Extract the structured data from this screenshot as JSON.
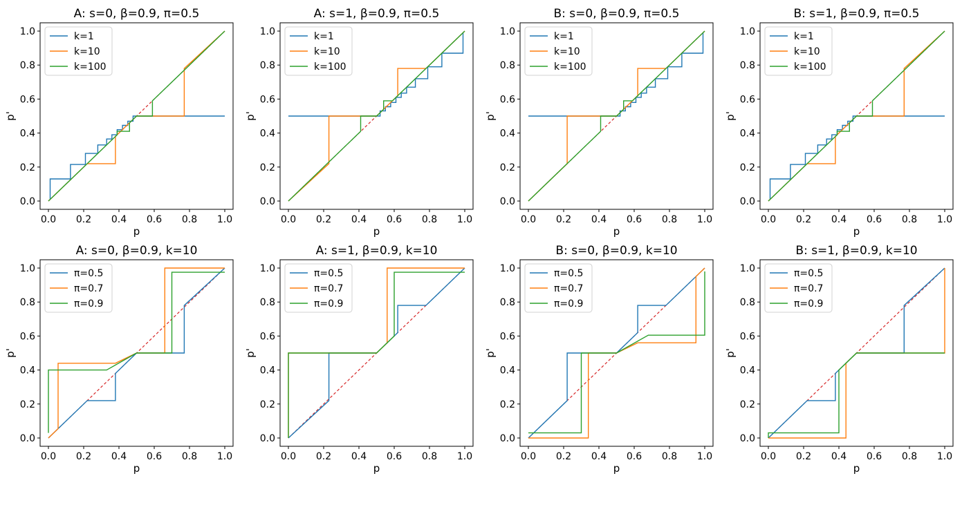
{
  "figure": {
    "rows": 2,
    "cols": 4
  },
  "colors": {
    "c0": "#1f77b4",
    "c1": "#ff7f0e",
    "c2": "#2ca02c",
    "diag": "#d62728",
    "axis": "#000000"
  },
  "chart_data": [
    {
      "type": "line",
      "title": "A: s=0, β=0.9, π=0.5",
      "xlabel": "p",
      "ylabel": "p'",
      "xlim": [
        0,
        1
      ],
      "ylim": [
        0,
        1
      ],
      "xticks": [
        "0.0",
        "0.2",
        "0.4",
        "0.6",
        "0.8",
        "1.0"
      ],
      "yticks": [
        "0.0",
        "0.2",
        "0.4",
        "0.6",
        "0.8",
        "1.0"
      ],
      "legend_position": "top-left",
      "reference_line": {
        "name": "p'=p",
        "style": "dashed",
        "x": [
          0,
          1
        ],
        "y": [
          0,
          1
        ]
      },
      "series": [
        {
          "name": "k=1",
          "x": [
            0.01,
            0.01,
            0.125,
            0.125,
            0.21,
            0.21,
            0.28,
            0.28,
            0.33,
            0.33,
            0.36,
            0.36,
            0.39,
            0.39,
            0.42,
            0.42,
            0.45,
            0.45,
            0.48,
            0.48,
            1.0
          ],
          "y": [
            0.01,
            0.13,
            0.13,
            0.215,
            0.215,
            0.28,
            0.28,
            0.33,
            0.33,
            0.365,
            0.365,
            0.39,
            0.39,
            0.42,
            0.42,
            0.445,
            0.445,
            0.47,
            0.47,
            0.5,
            0.5
          ]
        },
        {
          "name": "k=10",
          "x": [
            0.0,
            0.22,
            0.22,
            0.38,
            0.38,
            0.46,
            0.5,
            0.77,
            0.77,
            1.0
          ],
          "y": [
            0.0,
            0.22,
            0.22,
            0.22,
            0.38,
            0.46,
            0.5,
            0.5,
            0.78,
            1.0
          ]
        },
        {
          "name": "k=100",
          "x": [
            0.0,
            0.39,
            0.39,
            0.46,
            0.46,
            0.5,
            0.59,
            0.59,
            1.0
          ],
          "y": [
            0.0,
            0.39,
            0.41,
            0.41,
            0.46,
            0.5,
            0.5,
            0.59,
            1.0
          ]
        }
      ]
    },
    {
      "type": "line",
      "title": "A: s=1, β=0.9, π=0.5",
      "xlabel": "p",
      "ylabel": "p'",
      "xlim": [
        0,
        1
      ],
      "ylim": [
        0,
        1
      ],
      "xticks": [
        "0.0",
        "0.2",
        "0.4",
        "0.6",
        "0.8",
        "1.0"
      ],
      "yticks": [
        "0.0",
        "0.2",
        "0.4",
        "0.6",
        "0.8",
        "1.0"
      ],
      "legend_position": "top-left",
      "reference_line": {
        "name": "p'=p",
        "style": "dashed",
        "x": [
          0,
          1
        ],
        "y": [
          0,
          1
        ]
      },
      "series": [
        {
          "name": "k=1",
          "x": [
            0.0,
            0.52,
            0.52,
            0.55,
            0.55,
            0.58,
            0.58,
            0.61,
            0.61,
            0.64,
            0.64,
            0.67,
            0.67,
            0.72,
            0.72,
            0.79,
            0.79,
            0.87,
            0.87,
            0.99,
            0.99
          ],
          "y": [
            0.5,
            0.5,
            0.53,
            0.53,
            0.555,
            0.555,
            0.58,
            0.58,
            0.61,
            0.61,
            0.635,
            0.635,
            0.67,
            0.67,
            0.72,
            0.72,
            0.79,
            0.79,
            0.87,
            0.87,
            0.99
          ]
        },
        {
          "name": "k=10",
          "x": [
            0.0,
            0.0,
            0.23,
            0.23,
            0.5,
            0.62,
            0.62,
            0.78,
            0.78,
            1.0
          ],
          "y": [
            0.0,
            0.0,
            0.22,
            0.5,
            0.5,
            0.62,
            0.78,
            0.78,
            0.78,
            1.0
          ]
        },
        {
          "name": "k=100",
          "x": [
            0.0,
            0.41,
            0.41,
            0.5,
            0.54,
            0.54,
            0.59,
            0.59,
            1.0
          ],
          "y": [
            0.0,
            0.41,
            0.5,
            0.5,
            0.54,
            0.59,
            0.59,
            0.59,
            1.0
          ]
        }
      ]
    },
    {
      "type": "line",
      "title": "B: s=0, β=0.9, π=0.5",
      "xlabel": "p",
      "ylabel": "p'",
      "xlim": [
        0,
        1
      ],
      "ylim": [
        0,
        1
      ],
      "xticks": [
        "0.0",
        "0.2",
        "0.4",
        "0.6",
        "0.8",
        "1.0"
      ],
      "yticks": [
        "0.0",
        "0.2",
        "0.4",
        "0.6",
        "0.8",
        "1.0"
      ],
      "legend_position": "top-left",
      "reference_line": {
        "name": "p'=p",
        "style": "dashed",
        "x": [
          0,
          1
        ],
        "y": [
          0,
          1
        ]
      },
      "series": [
        {
          "name": "k=1",
          "x": [
            0.0,
            0.52,
            0.52,
            0.55,
            0.55,
            0.58,
            0.58,
            0.61,
            0.61,
            0.64,
            0.64,
            0.67,
            0.67,
            0.72,
            0.72,
            0.79,
            0.79,
            0.87,
            0.87,
            0.99,
            0.99
          ],
          "y": [
            0.5,
            0.5,
            0.53,
            0.53,
            0.555,
            0.555,
            0.58,
            0.58,
            0.61,
            0.61,
            0.635,
            0.635,
            0.67,
            0.67,
            0.72,
            0.72,
            0.79,
            0.79,
            0.87,
            0.87,
            0.99
          ]
        },
        {
          "name": "k=10",
          "x": [
            0.0,
            0.22,
            0.22,
            0.5,
            0.62,
            0.62,
            0.78,
            0.78,
            1.0
          ],
          "y": [
            0.0,
            0.22,
            0.5,
            0.5,
            0.62,
            0.78,
            0.78,
            0.78,
            1.0
          ]
        },
        {
          "name": "k=100",
          "x": [
            0.0,
            0.41,
            0.41,
            0.5,
            0.54,
            0.54,
            0.59,
            0.59,
            1.0
          ],
          "y": [
            0.0,
            0.41,
            0.5,
            0.5,
            0.54,
            0.59,
            0.59,
            0.59,
            1.0
          ]
        }
      ]
    },
    {
      "type": "line",
      "title": "B: s=1, β=0.9, π=0.5",
      "xlabel": "p",
      "ylabel": "p'",
      "xlim": [
        0,
        1
      ],
      "ylim": [
        0,
        1
      ],
      "xticks": [
        "0.0",
        "0.2",
        "0.4",
        "0.6",
        "0.8",
        "1.0"
      ],
      "yticks": [
        "0.0",
        "0.2",
        "0.4",
        "0.6",
        "0.8",
        "1.0"
      ],
      "legend_position": "top-left",
      "reference_line": {
        "name": "p'=p",
        "style": "dashed",
        "x": [
          0,
          1
        ],
        "y": [
          0,
          1
        ]
      },
      "series": [
        {
          "name": "k=1",
          "x": [
            0.01,
            0.01,
            0.125,
            0.125,
            0.21,
            0.21,
            0.28,
            0.28,
            0.33,
            0.33,
            0.36,
            0.36,
            0.39,
            0.39,
            0.42,
            0.42,
            0.45,
            0.45,
            0.48,
            0.48,
            1.0
          ],
          "y": [
            0.01,
            0.13,
            0.13,
            0.215,
            0.215,
            0.28,
            0.28,
            0.33,
            0.33,
            0.365,
            0.365,
            0.39,
            0.39,
            0.42,
            0.42,
            0.445,
            0.445,
            0.47,
            0.47,
            0.5,
            0.5
          ]
        },
        {
          "name": "k=10",
          "x": [
            0.0,
            0.22,
            0.22,
            0.38,
            0.38,
            0.46,
            0.5,
            0.77,
            0.77,
            1.0
          ],
          "y": [
            0.0,
            0.22,
            0.22,
            0.22,
            0.38,
            0.46,
            0.5,
            0.5,
            0.78,
            1.0
          ]
        },
        {
          "name": "k=100",
          "x": [
            0.0,
            0.39,
            0.39,
            0.46,
            0.46,
            0.5,
            0.59,
            0.59,
            1.0
          ],
          "y": [
            0.0,
            0.39,
            0.41,
            0.41,
            0.46,
            0.5,
            0.5,
            0.59,
            1.0
          ]
        }
      ]
    },
    {
      "type": "line",
      "title": "A: s=0, β=0.9, k=10",
      "xlabel": "p",
      "ylabel": "p'",
      "xlim": [
        0,
        1
      ],
      "ylim": [
        0,
        1
      ],
      "xticks": [
        "0.0",
        "0.2",
        "0.4",
        "0.6",
        "0.8",
        "1.0"
      ],
      "yticks": [
        "0.0",
        "0.2",
        "0.4",
        "0.6",
        "0.8",
        "1.0"
      ],
      "legend_position": "top-left",
      "reference_line": {
        "name": "p'=p",
        "style": "dashed",
        "x": [
          0,
          1
        ],
        "y": [
          0,
          1
        ]
      },
      "series": [
        {
          "name": "π=0.5",
          "x": [
            0.0,
            0.22,
            0.22,
            0.38,
            0.38,
            0.46,
            0.5,
            0.77,
            0.77,
            1.0
          ],
          "y": [
            0.0,
            0.22,
            0.22,
            0.22,
            0.38,
            0.46,
            0.5,
            0.5,
            0.78,
            1.0
          ]
        },
        {
          "name": "π=0.7",
          "x": [
            0.0,
            0.055,
            0.055,
            0.38,
            0.5,
            0.66,
            0.66,
            1.0
          ],
          "y": [
            0.0,
            0.055,
            0.44,
            0.44,
            0.5,
            0.5,
            1.0,
            1.0
          ]
        },
        {
          "name": "π=0.9",
          "x": [
            0.0,
            0.0,
            0.33,
            0.5,
            0.7,
            0.7,
            1.0
          ],
          "y": [
            0.03,
            0.4,
            0.4,
            0.5,
            0.5,
            0.975,
            0.975
          ]
        }
      ]
    },
    {
      "type": "line",
      "title": "A: s=1, β=0.9, k=10",
      "xlabel": "p",
      "ylabel": "p'",
      "xlim": [
        0,
        1
      ],
      "ylim": [
        0,
        1
      ],
      "xticks": [
        "0.0",
        "0.2",
        "0.4",
        "0.6",
        "0.8",
        "1.0"
      ],
      "yticks": [
        "0.0",
        "0.2",
        "0.4",
        "0.6",
        "0.8",
        "1.0"
      ],
      "legend_position": "top-left",
      "reference_line": {
        "name": "p'=p",
        "style": "dashed",
        "x": [
          0,
          1
        ],
        "y": [
          0,
          1
        ]
      },
      "series": [
        {
          "name": "π=0.5",
          "x": [
            0.0,
            0.0,
            0.23,
            0.23,
            0.5,
            0.62,
            0.62,
            0.78,
            0.78,
            1.0
          ],
          "y": [
            0.0,
            0.0,
            0.22,
            0.5,
            0.5,
            0.62,
            0.78,
            0.78,
            0.78,
            1.0
          ]
        },
        {
          "name": "π=0.7",
          "x": [
            0.0,
            0.0,
            0.5,
            0.56,
            0.56,
            1.0
          ],
          "y": [
            0.0,
            0.5,
            0.5,
            0.56,
            1.0,
            1.0
          ]
        },
        {
          "name": "π=0.9",
          "x": [
            0.0,
            0.0,
            0.5,
            0.6,
            0.6,
            1.0
          ],
          "y": [
            0.0,
            0.5,
            0.5,
            0.6,
            0.975,
            0.975
          ]
        }
      ]
    },
    {
      "type": "line",
      "title": "B: s=0, β=0.9, k=10",
      "xlabel": "p",
      "ylabel": "p'",
      "xlim": [
        0,
        1
      ],
      "ylim": [
        0,
        1
      ],
      "xticks": [
        "0.0",
        "0.2",
        "0.4",
        "0.6",
        "0.8",
        "1.0"
      ],
      "yticks": [
        "0.0",
        "0.2",
        "0.4",
        "0.6",
        "0.8",
        "1.0"
      ],
      "legend_position": "top-left",
      "reference_line": {
        "name": "p'=p",
        "style": "dashed",
        "x": [
          0,
          1
        ],
        "y": [
          0,
          1
        ]
      },
      "series": [
        {
          "name": "π=0.5",
          "x": [
            0.0,
            0.22,
            0.22,
            0.5,
            0.62,
            0.62,
            0.78,
            0.78,
            1.0
          ],
          "y": [
            0.0,
            0.22,
            0.5,
            0.5,
            0.62,
            0.78,
            0.78,
            0.78,
            1.0
          ]
        },
        {
          "name": "π=0.7",
          "x": [
            0.0,
            0.34,
            0.34,
            0.5,
            0.62,
            0.95,
            0.95,
            1.0
          ],
          "y": [
            0.0,
            0.0,
            0.5,
            0.5,
            0.56,
            0.56,
            0.95,
            1.0
          ]
        },
        {
          "name": "π=0.9",
          "x": [
            0.0,
            0.3,
            0.3,
            0.5,
            0.68,
            1.0,
            1.0
          ],
          "y": [
            0.03,
            0.03,
            0.5,
            0.5,
            0.605,
            0.605,
            0.98
          ]
        }
      ]
    },
    {
      "type": "line",
      "title": "B: s=1, β=0.9, k=10",
      "xlabel": "p",
      "ylabel": "p'",
      "xlim": [
        0,
        1
      ],
      "ylim": [
        0,
        1
      ],
      "xticks": [
        "0.0",
        "0.2",
        "0.4",
        "0.6",
        "0.8",
        "1.0"
      ],
      "yticks": [
        "0.0",
        "0.2",
        "0.4",
        "0.6",
        "0.8",
        "1.0"
      ],
      "legend_position": "top-left",
      "reference_line": {
        "name": "p'=p",
        "style": "dashed",
        "x": [
          0,
          1
        ],
        "y": [
          0,
          1
        ]
      },
      "series": [
        {
          "name": "π=0.5",
          "x": [
            0.0,
            0.22,
            0.22,
            0.38,
            0.38,
            0.46,
            0.5,
            0.77,
            0.77,
            1.0
          ],
          "y": [
            0.0,
            0.22,
            0.22,
            0.22,
            0.38,
            0.46,
            0.5,
            0.5,
            0.78,
            1.0
          ]
        },
        {
          "name": "π=0.7",
          "x": [
            0.0,
            0.44,
            0.44,
            0.5,
            1.0,
            1.0
          ],
          "y": [
            0.0,
            0.0,
            0.44,
            0.5,
            0.5,
            1.0
          ]
        },
        {
          "name": "π=0.9",
          "x": [
            0.0,
            0.0,
            0.4,
            0.4,
            0.5,
            1.0
          ],
          "y": [
            0.0,
            0.03,
            0.03,
            0.4,
            0.5,
            0.5
          ]
        }
      ]
    }
  ]
}
